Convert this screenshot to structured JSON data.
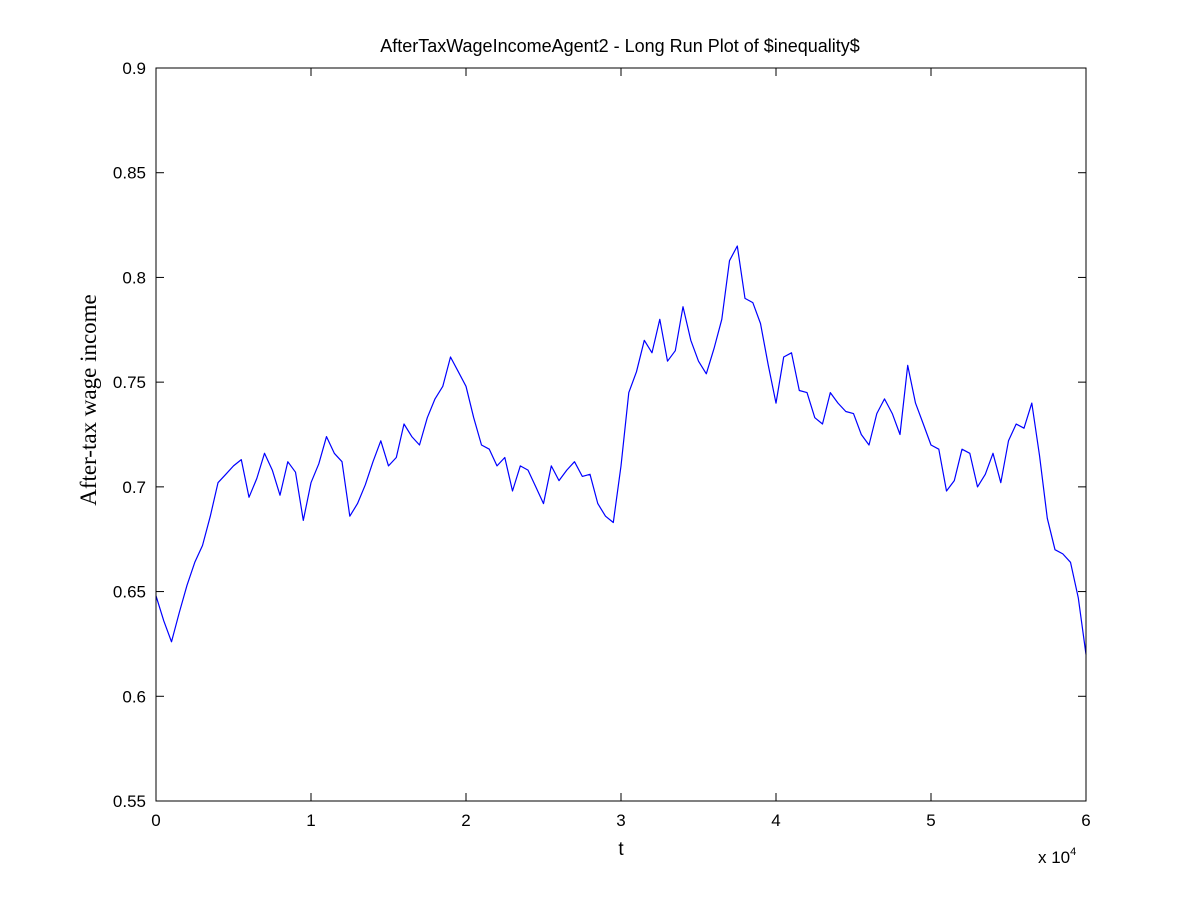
{
  "chart_data": {
    "type": "line",
    "title": "AfterTaxWageIncomeAgent2 - Long Run Plot of $inequality$",
    "xlabel": "t",
    "ylabel": "After-tax wage income",
    "x_multiplier": {
      "base": "x 10",
      "exponent": "4"
    },
    "xlim": [
      0,
      6
    ],
    "ylim": [
      0.55,
      0.9
    ],
    "xticks": [
      "0",
      "1",
      "2",
      "3",
      "4",
      "5",
      "6"
    ],
    "yticks": [
      "0.55",
      "0.6",
      "0.65",
      "0.7",
      "0.75",
      "0.8",
      "0.85",
      "0.9"
    ],
    "grid": false,
    "line_color": "#0000ff",
    "series": [
      {
        "x": [
          0,
          0.05,
          0.1,
          0.15,
          0.2,
          0.25,
          0.3,
          0.35,
          0.4,
          0.45,
          0.5,
          0.55,
          0.6,
          0.65,
          0.7,
          0.75,
          0.8,
          0.85,
          0.9,
          0.95,
          1.0,
          1.05,
          1.1,
          1.15,
          1.2,
          1.25,
          1.3,
          1.35,
          1.4,
          1.45,
          1.5,
          1.55,
          1.6,
          1.65,
          1.7,
          1.75,
          1.8,
          1.85,
          1.9,
          1.95,
          2.0,
          2.05,
          2.1,
          2.15,
          2.2,
          2.25,
          2.3,
          2.35,
          2.4,
          2.45,
          2.5,
          2.55,
          2.6,
          2.65,
          2.7,
          2.75,
          2.8,
          2.85,
          2.9,
          2.95,
          3.0,
          3.05,
          3.1,
          3.15,
          3.2,
          3.25,
          3.3,
          3.35,
          3.4,
          3.45,
          3.5,
          3.55,
          3.6,
          3.65,
          3.7,
          3.75,
          3.8,
          3.85,
          3.9,
          3.95,
          4.0,
          4.05,
          4.1,
          4.15,
          4.2,
          4.25,
          4.3,
          4.35,
          4.4,
          4.45,
          4.5,
          4.55,
          4.6,
          4.65,
          4.7,
          4.75,
          4.8,
          4.85,
          4.9,
          4.95,
          5.0,
          5.05,
          5.1,
          5.15,
          5.2,
          5.25,
          5.3,
          5.35,
          5.4,
          5.45,
          5.5,
          5.55,
          5.6,
          5.65,
          5.7,
          5.75,
          5.8,
          5.85,
          5.9,
          5.95,
          6.0
        ],
        "y": [
          0.648,
          0.636,
          0.626,
          0.64,
          0.653,
          0.664,
          0.672,
          0.686,
          0.702,
          0.706,
          0.71,
          0.713,
          0.695,
          0.704,
          0.716,
          0.708,
          0.696,
          0.712,
          0.707,
          0.684,
          0.702,
          0.711,
          0.724,
          0.716,
          0.712,
          0.686,
          0.692,
          0.701,
          0.712,
          0.722,
          0.71,
          0.714,
          0.73,
          0.724,
          0.72,
          0.733,
          0.742,
          0.748,
          0.762,
          0.755,
          0.748,
          0.733,
          0.72,
          0.718,
          0.71,
          0.714,
          0.698,
          0.71,
          0.708,
          0.7,
          0.692,
          0.71,
          0.703,
          0.708,
          0.712,
          0.705,
          0.706,
          0.692,
          0.686,
          0.683,
          0.71,
          0.745,
          0.755,
          0.77,
          0.764,
          0.78,
          0.76,
          0.765,
          0.786,
          0.77,
          0.76,
          0.754,
          0.766,
          0.78,
          0.808,
          0.815,
          0.79,
          0.788,
          0.778,
          0.758,
          0.74,
          0.762,
          0.764,
          0.746,
          0.745,
          0.733,
          0.73,
          0.745,
          0.74,
          0.736,
          0.735,
          0.725,
          0.72,
          0.735,
          0.742,
          0.735,
          0.725,
          0.758,
          0.74,
          0.73,
          0.72,
          0.718,
          0.698,
          0.703,
          0.718,
          0.716,
          0.7,
          0.706,
          0.716,
          0.702,
          0.722,
          0.73,
          0.728,
          0.74,
          0.715,
          0.685,
          0.67,
          0.668,
          0.664,
          0.647,
          0.62
        ]
      }
    ]
  }
}
